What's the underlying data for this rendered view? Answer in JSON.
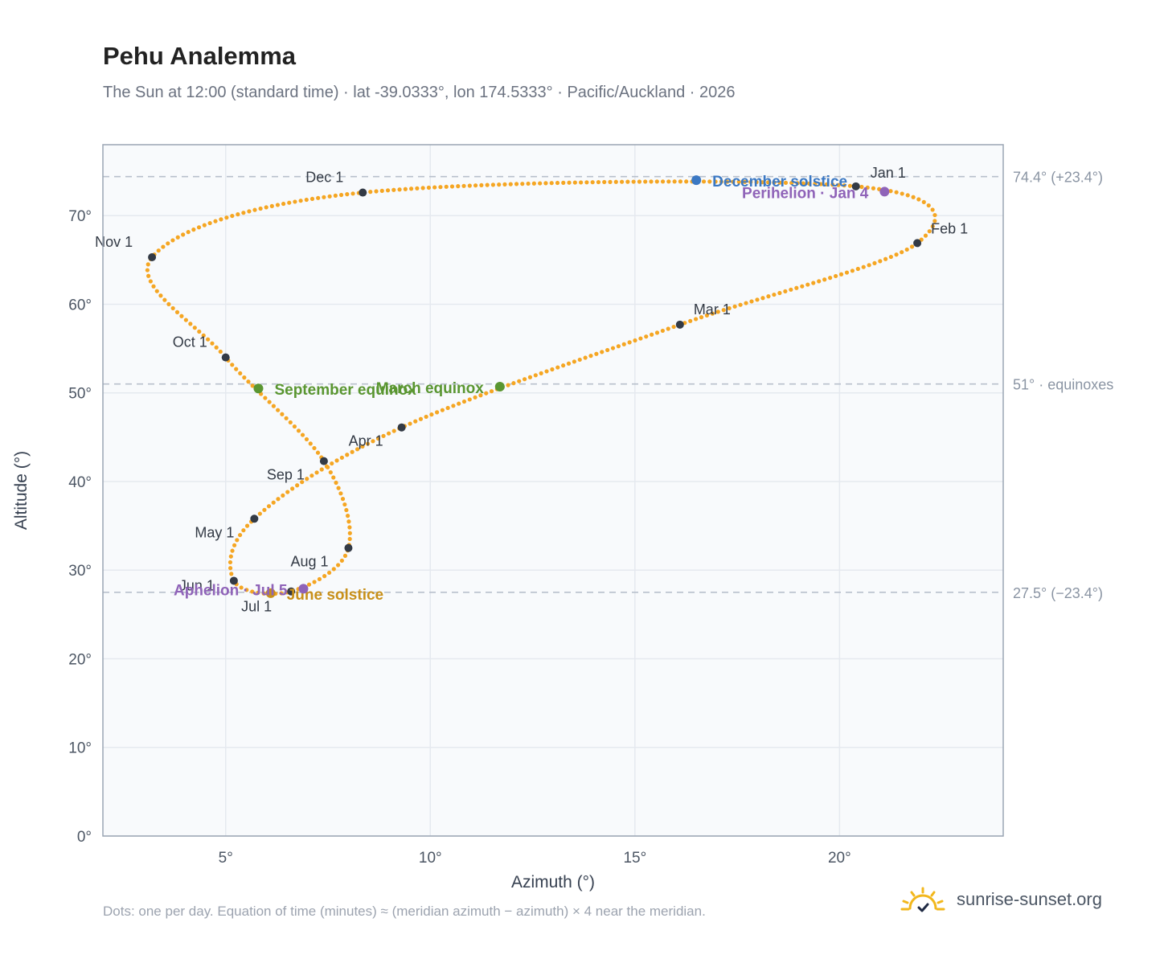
{
  "title": "Pehu Analemma",
  "subtitle": "The Sun at 12:00 (standard time) · lat -39.0333°, lon 174.5333° · Pacific/Auckland · 2026",
  "footnote": "Dots: one per day. Equation of time (minutes) ≈ (meridian azimuth − azimuth) × 4 near the meridian.",
  "brand": {
    "name": "sunrise-sunset.org",
    "icon": "sun-logo-icon"
  },
  "colors": {
    "curve": "#f5a623",
    "month_dot": "#333a45",
    "december_solstice": "#3b78c3",
    "june_solstice": "#c8901a",
    "equinox": "#5a9631",
    "perihelion_aphelion": "#8f63b8",
    "reference_line": "#b8c0cc",
    "plot_bg": "#f8fafc",
    "grid": "#e5e9ef"
  },
  "chart_data": {
    "type": "scatter",
    "xlabel": "Azimuth (°)",
    "ylabel": "Altitude (°)",
    "xlim": [
      2,
      24
    ],
    "ylim": [
      0,
      78
    ],
    "x_ticks": [
      5,
      10,
      15,
      20
    ],
    "x_tick_labels": [
      "5°",
      "10°",
      "15°",
      "20°"
    ],
    "y_ticks": [
      0,
      10,
      20,
      30,
      40,
      50,
      60,
      70
    ],
    "y_tick_labels": [
      "0°",
      "10°",
      "20°",
      "30°",
      "40°",
      "50°",
      "60°",
      "70°"
    ],
    "grid": true,
    "series": [
      {
        "points": [
          [
            20.4,
            73.3
          ],
          [
            21.9,
            66.9
          ],
          [
            16.1,
            57.7
          ],
          [
            9.3,
            46.1
          ],
          [
            5.7,
            35.8
          ],
          [
            5.2,
            28.8
          ],
          [
            6.6,
            27.6
          ],
          [
            8.0,
            32.5
          ],
          [
            7.4,
            42.3
          ],
          [
            5.0,
            54.0
          ],
          [
            3.2,
            65.3
          ],
          [
            8.35,
            72.6
          ],
          [
            20.4,
            73.3
          ]
        ]
      }
    ],
    "month_markers": [
      {
        "label": "Jan 1",
        "x": 20.4,
        "y": 73.3
      },
      {
        "label": "Feb 1",
        "x": 21.9,
        "y": 66.9
      },
      {
        "label": "Mar 1",
        "x": 16.1,
        "y": 57.7
      },
      {
        "label": "Apr 1",
        "x": 9.3,
        "y": 46.1
      },
      {
        "label": "May 1",
        "x": 5.7,
        "y": 35.8
      },
      {
        "label": "Jun 1",
        "x": 5.2,
        "y": 28.8
      },
      {
        "label": "Jul 1",
        "x": 6.6,
        "y": 27.6
      },
      {
        "label": "Aug 1",
        "x": 8.0,
        "y": 32.5
      },
      {
        "label": "Sep 1",
        "x": 7.4,
        "y": 42.3
      },
      {
        "label": "Oct 1",
        "x": 5.0,
        "y": 54.0
      },
      {
        "label": "Nov 1",
        "x": 3.2,
        "y": 65.3
      },
      {
        "label": "Dec 1",
        "x": 8.35,
        "y": 72.6
      }
    ],
    "events": [
      {
        "label": "December solstice",
        "x": 16.5,
        "y": 74.0,
        "color_key": "december_solstice"
      },
      {
        "label": "Perihelion · Jan 4",
        "x": 21.1,
        "y": 72.7,
        "color_key": "perihelion_aphelion"
      },
      {
        "label": "March equinox",
        "x": 11.7,
        "y": 50.7,
        "color_key": "equinox"
      },
      {
        "label": "September equinox",
        "x": 5.8,
        "y": 50.5,
        "color_key": "equinox"
      },
      {
        "label": "June solstice",
        "x": 6.1,
        "y": 27.4,
        "color_key": "june_solstice"
      },
      {
        "label": "Aphelion · Jul 5",
        "x": 6.9,
        "y": 27.9,
        "color_key": "perihelion_aphelion"
      }
    ],
    "reference_lines": [
      {
        "y": 74.4,
        "label": "74.4° (+23.4°)"
      },
      {
        "y": 51,
        "label": "51° · equinoxes"
      },
      {
        "y": 27.5,
        "label": "27.5° (−23.4°)"
      }
    ]
  }
}
